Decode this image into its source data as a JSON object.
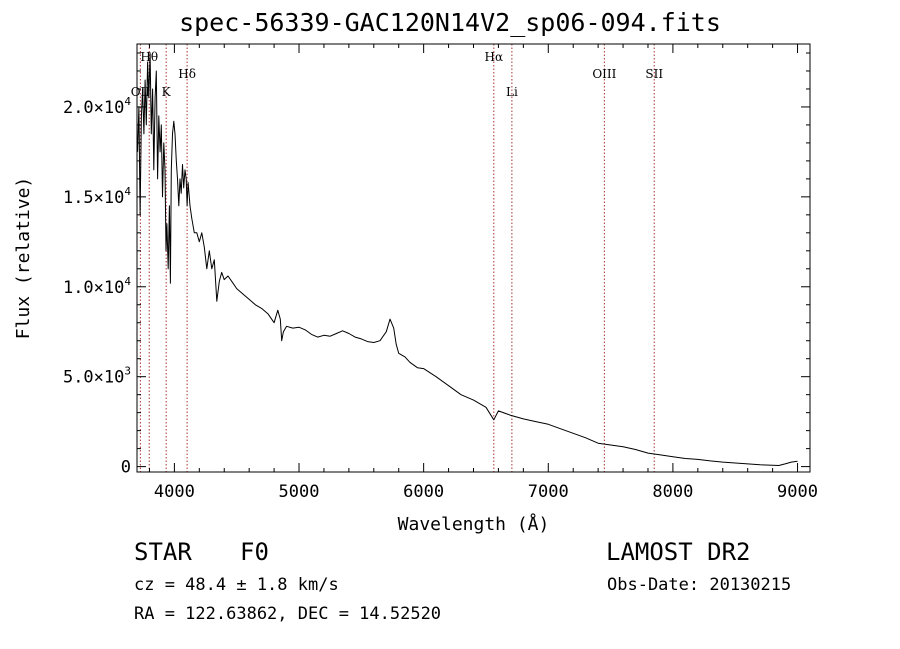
{
  "chart_data": {
    "type": "line",
    "title": "spec-56339-GAC120N14V2_sp06-094.fits",
    "xlabel": "Wavelength (Å)",
    "ylabel": "Flux (relative)",
    "xlim": [
      3700,
      9100
    ],
    "ylim": [
      -300,
      23500
    ],
    "xticks": [
      4000,
      5000,
      6000,
      7000,
      8000,
      9000
    ],
    "xtick_labels": [
      "4000",
      "5000",
      "6000",
      "7000",
      "8000",
      "9000"
    ],
    "yticks": [
      0,
      5000,
      10000,
      15000,
      20000
    ],
    "ytick_labels": [
      {
        "mantissa": "0",
        "exponent": ""
      },
      {
        "mantissa": "5.0×10",
        "exponent": "3"
      },
      {
        "mantissa": "1.0×10",
        "exponent": "4"
      },
      {
        "mantissa": "1.5×10",
        "exponent": "4"
      },
      {
        "mantissa": "2.0×10",
        "exponent": "4"
      }
    ],
    "grid": false,
    "series": [
      {
        "color": "#000000",
        "x": [
          3705,
          3715,
          3725,
          3735,
          3745,
          3755,
          3765,
          3775,
          3785,
          3795,
          3805,
          3815,
          3825,
          3835,
          3845,
          3855,
          3865,
          3875,
          3885,
          3895,
          3905,
          3915,
          3925,
          3933,
          3940,
          3950,
          3960,
          3968,
          3975,
          3985,
          3995,
          4005,
          4015,
          4025,
          4035,
          4045,
          4055,
          4065,
          4075,
          4085,
          4095,
          4102,
          4110,
          4125,
          4140,
          4160,
          4180,
          4200,
          4220,
          4240,
          4260,
          4280,
          4300,
          4320,
          4340,
          4360,
          4380,
          4400,
          4430,
          4470,
          4500,
          4550,
          4600,
          4650,
          4700,
          4750,
          4800,
          4830,
          4850,
          4861,
          4875,
          4900,
          4950,
          5000,
          5050,
          5100,
          5150,
          5200,
          5250,
          5300,
          5350,
          5400,
          5450,
          5500,
          5550,
          5600,
          5650,
          5700,
          5730,
          5760,
          5780,
          5800,
          5850,
          5890,
          5950,
          6000,
          6100,
          6200,
          6300,
          6400,
          6500,
          6563,
          6600,
          6700,
          6800,
          6900,
          7000,
          7100,
          7200,
          7300,
          7400,
          7500,
          7600,
          7700,
          7800,
          7900,
          8000,
          8100,
          8200,
          8300,
          8400,
          8500,
          8600,
          8700,
          8800,
          8850,
          8900,
          8950,
          9000
        ],
        "y": [
          17500,
          20000,
          14000,
          19500,
          21000,
          18500,
          21500,
          19000,
          22500,
          20500,
          23000,
          18500,
          21000,
          16500,
          20500,
          22000,
          16000,
          19500,
          17500,
          19000,
          15000,
          18000,
          16500,
          12000,
          13500,
          11000,
          14500,
          10200,
          16500,
          18500,
          19200,
          18500,
          17000,
          16000,
          14500,
          16000,
          15200,
          16800,
          15500,
          16500,
          16000,
          14500,
          15800,
          14500,
          13800,
          13000,
          13000,
          12500,
          13000,
          12200,
          11000,
          12000,
          11000,
          11500,
          9200,
          10300,
          10800,
          10400,
          10600,
          10200,
          9900,
          9600,
          9300,
          9000,
          8800,
          8500,
          8000,
          8700,
          8200,
          7000,
          7500,
          7800,
          7700,
          7750,
          7600,
          7350,
          7200,
          7300,
          7250,
          7400,
          7550,
          7400,
          7200,
          7100,
          6950,
          6900,
          7000,
          7500,
          8200,
          7700,
          6800,
          6300,
          6100,
          5800,
          5500,
          5450,
          5000,
          4500,
          4000,
          3700,
          3300,
          2600,
          3100,
          2850,
          2650,
          2500,
          2350,
          2100,
          1850,
          1600,
          1300,
          1200,
          1100,
          950,
          750,
          650,
          550,
          450,
          400,
          320,
          250,
          200,
          150,
          100,
          80,
          60,
          150,
          250,
          300
        ]
      }
    ],
    "lines": [
      {
        "label": "Hθ",
        "x": 3798
      },
      {
        "label": "OII",
        "x": 3727
      },
      {
        "label": "K",
        "x": 3934
      },
      {
        "label": "Hδ",
        "x": 4102
      },
      {
        "label": "Hα",
        "x": 6563
      },
      {
        "label": "Li",
        "x": 6708
      },
      {
        "label": "OIII",
        "x": 7450
      },
      {
        "label": "SII",
        "x": 7850
      }
    ],
    "line_color": "#a83232"
  },
  "info": {
    "class": "STAR",
    "subclass": "F0",
    "survey": "LAMOST DR2",
    "cz": "cz = 48.4 ± 1.8 km/s",
    "obs_date": "Obs-Date: 20130215",
    "radec": "RA = 122.63862, DEC =  14.52520"
  }
}
